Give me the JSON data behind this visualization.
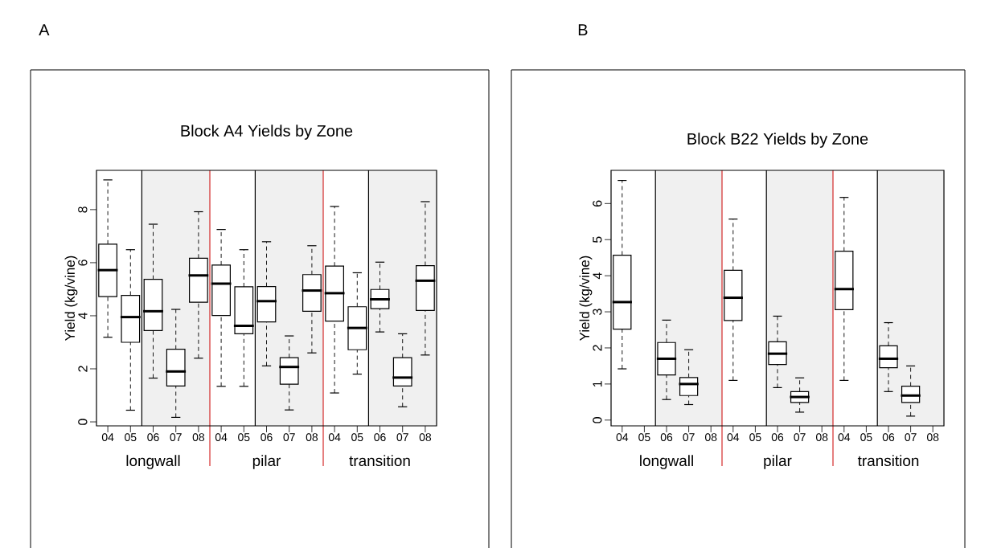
{
  "chart_data": [
    {
      "type": "box",
      "title": "Block A4 Yields by Zone",
      "ylabel": "Yield (kg/vine)",
      "categories": [
        "04",
        "05",
        "06",
        "07",
        "08",
        "04",
        "05",
        "06",
        "07",
        "08",
        "04",
        "05",
        "06",
        "07",
        "08"
      ],
      "ylim": [
        -0.15,
        9.48
      ],
      "yticks": [
        0,
        2,
        4,
        6,
        8
      ],
      "annotations": [
        "A",
        "longwall",
        "pilar",
        "transition"
      ],
      "boxes": [
        {
          "low": 3.19,
          "q1": 4.72,
          "median": 5.72,
          "q3": 6.7,
          "high": 9.12
        },
        {
          "low": 0.44,
          "q1": 3.0,
          "median": 3.95,
          "q3": 4.77,
          "high": 6.49
        },
        {
          "low": 1.65,
          "q1": 3.44,
          "median": 4.17,
          "q3": 5.37,
          "high": 7.45
        },
        {
          "low": 0.17,
          "q1": 1.35,
          "median": 1.9,
          "q3": 2.74,
          "high": 4.24
        },
        {
          "low": 2.4,
          "q1": 4.51,
          "median": 5.52,
          "q3": 6.17,
          "high": 7.92
        },
        {
          "low": 1.34,
          "q1": 4.01,
          "median": 5.21,
          "q3": 5.91,
          "high": 7.25
        },
        {
          "low": 1.34,
          "q1": 3.32,
          "median": 3.62,
          "q3": 5.09,
          "high": 6.49
        },
        {
          "low": 2.11,
          "q1": 3.77,
          "median": 4.55,
          "q3": 5.1,
          "high": 6.79
        },
        {
          "low": 0.45,
          "q1": 1.42,
          "median": 2.07,
          "q3": 2.42,
          "high": 3.24
        },
        {
          "low": 2.6,
          "q1": 4.17,
          "median": 4.95,
          "q3": 5.55,
          "high": 6.64
        },
        {
          "low": 1.09,
          "q1": 3.8,
          "median": 4.85,
          "q3": 5.87,
          "high": 8.12
        },
        {
          "low": 1.8,
          "q1": 2.72,
          "median": 3.54,
          "q3": 4.34,
          "high": 5.62
        },
        {
          "low": 3.39,
          "q1": 4.27,
          "median": 4.62,
          "q3": 4.99,
          "high": 6.02
        },
        {
          "low": 0.57,
          "q1": 1.35,
          "median": 1.67,
          "q3": 2.42,
          "high": 3.32
        },
        {
          "low": 2.52,
          "q1": 4.2,
          "median": 5.32,
          "q3": 5.89,
          "high": 8.3
        }
      ]
    },
    {
      "type": "box",
      "title": "Block B22 Yields by Zone",
      "ylabel": "Yield (kg/vine)",
      "categories": [
        "04",
        "05",
        "06",
        "07",
        "08",
        "04",
        "05",
        "06",
        "07",
        "08",
        "04",
        "05",
        "06",
        "07",
        "08"
      ],
      "ylim": [
        -0.16,
        6.92
      ],
      "yticks": [
        0,
        1,
        2,
        3,
        4,
        5,
        6
      ],
      "annotations": [
        "B",
        "longwall",
        "pilar",
        "transition"
      ],
      "boxes": [
        {
          "low": 1.42,
          "q1": 2.52,
          "median": 3.27,
          "q3": 4.57,
          "high": 6.64
        },
        null,
        {
          "low": 0.57,
          "q1": 1.25,
          "median": 1.7,
          "q3": 2.15,
          "high": 2.77
        },
        {
          "low": 0.43,
          "q1": 0.68,
          "median": 1.0,
          "q3": 1.18,
          "high": 1.95
        },
        null,
        {
          "low": 1.1,
          "q1": 2.76,
          "median": 3.39,
          "q3": 4.15,
          "high": 5.57
        },
        null,
        {
          "low": 0.9,
          "q1": 1.54,
          "median": 1.84,
          "q3": 2.17,
          "high": 2.88
        },
        {
          "low": 0.22,
          "q1": 0.49,
          "median": 0.64,
          "q3": 0.79,
          "high": 1.17
        },
        null,
        {
          "low": 1.1,
          "q1": 3.06,
          "median": 3.63,
          "q3": 4.68,
          "high": 6.17
        },
        null,
        {
          "low": 0.79,
          "q1": 1.45,
          "median": 1.7,
          "q3": 2.06,
          "high": 2.7
        },
        {
          "low": 0.11,
          "q1": 0.49,
          "median": 0.68,
          "q3": 0.94,
          "high": 1.5
        },
        null
      ]
    }
  ]
}
